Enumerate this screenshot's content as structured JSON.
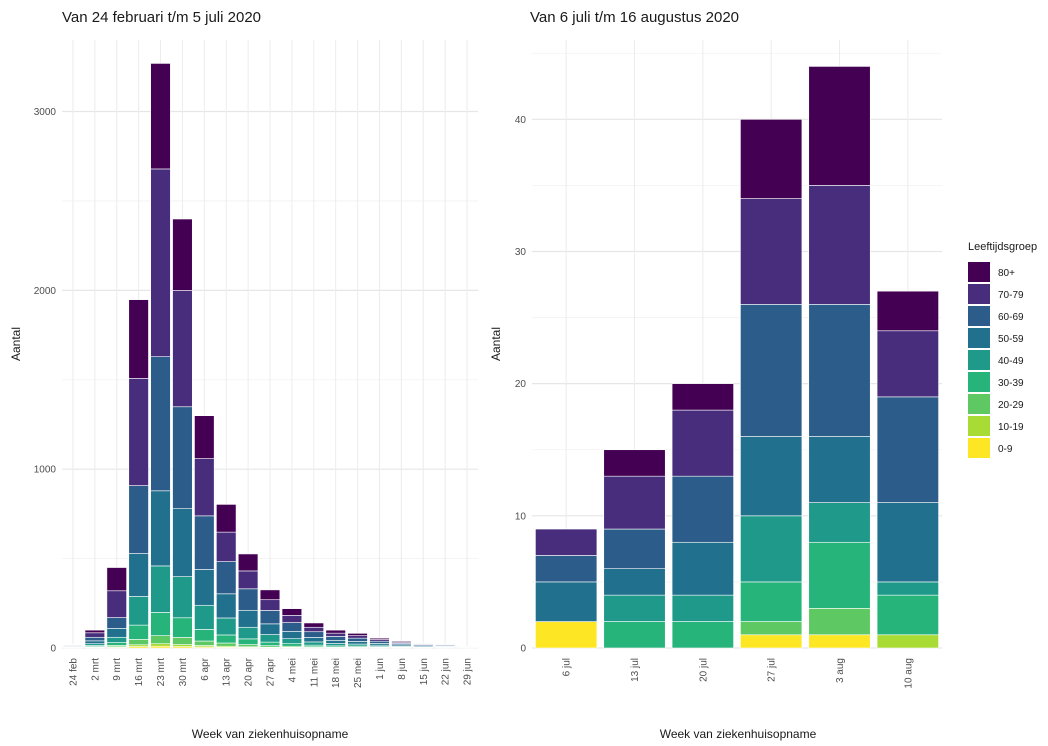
{
  "chart_data": [
    {
      "type": "bar",
      "stacked": true,
      "title": "Van 24 februari t/m 5 juli 2020",
      "xlabel": "Week van ziekenhuisopname",
      "ylabel": "Aantal",
      "ylim": [
        0,
        3400
      ],
      "yticks": [
        0,
        1000,
        2000,
        3000
      ],
      "grid": true,
      "categories": [
        "24 feb",
        "2 mrt",
        "9 mrt",
        "16 mrt",
        "23 mrt",
        "30 mrt",
        "6 apr",
        "13 apr",
        "20 apr",
        "27 apr",
        "4 mei",
        "11 mei",
        "18 mei",
        "25 mei",
        "1 jun",
        "8 jun",
        "15 jun",
        "22 jun",
        "29 jun"
      ],
      "series": [
        {
          "name": "0-9",
          "values": [
            1,
            2,
            3,
            8,
            10,
            8,
            6,
            4,
            3,
            2,
            2,
            1,
            1,
            1,
            1,
            1,
            0,
            0,
            0
          ]
        },
        {
          "name": "10-19",
          "values": [
            1,
            2,
            4,
            10,
            14,
            11,
            8,
            6,
            4,
            3,
            2,
            2,
            1,
            1,
            1,
            1,
            1,
            1,
            0
          ]
        },
        {
          "name": "20-29",
          "values": [
            2,
            4,
            8,
            30,
            45,
            40,
            25,
            18,
            12,
            8,
            6,
            4,
            3,
            3,
            2,
            1,
            1,
            1,
            1
          ]
        },
        {
          "name": "30-39",
          "values": [
            2,
            6,
            15,
            80,
            130,
            110,
            65,
            45,
            32,
            20,
            14,
            9,
            7,
            6,
            4,
            3,
            2,
            2,
            1
          ]
        },
        {
          "name": "40-49",
          "values": [
            3,
            10,
            30,
            160,
            260,
            230,
            135,
            95,
            65,
            42,
            28,
            18,
            13,
            11,
            8,
            5,
            4,
            3,
            2
          ]
        },
        {
          "name": "50-59",
          "values": [
            4,
            16,
            50,
            240,
            420,
            380,
            200,
            135,
            95,
            60,
            40,
            25,
            18,
            15,
            10,
            7,
            5,
            4,
            2
          ]
        },
        {
          "name": "60-69",
          "values": [
            4,
            20,
            60,
            380,
            750,
            570,
            300,
            180,
            120,
            75,
            50,
            32,
            22,
            18,
            12,
            8,
            6,
            5,
            2
          ]
        },
        {
          "name": "70-79",
          "values": [
            3,
            25,
            150,
            600,
            1050,
            650,
            320,
            165,
            100,
            60,
            40,
            25,
            18,
            14,
            9,
            6,
            4,
            3,
            1
          ]
        },
        {
          "name": "80+",
          "values": [
            2,
            15,
            130,
            440,
            590,
            400,
            240,
            155,
            95,
            55,
            38,
            24,
            17,
            13,
            8,
            5,
            3,
            3,
            1
          ]
        }
      ]
    },
    {
      "type": "bar",
      "stacked": true,
      "title": "Van 6 juli t/m 16 augustus 2020",
      "xlabel": "Week van ziekenhuisopname",
      "ylabel": "Aantal",
      "ylim": [
        0,
        46
      ],
      "yticks": [
        0,
        10,
        20,
        30,
        40
      ],
      "grid": true,
      "categories": [
        "6 jul",
        "13 jul",
        "20 jul",
        "27 jul",
        "3 aug",
        "10 aug"
      ],
      "series": [
        {
          "name": "0-9",
          "values": [
            2,
            0,
            0,
            1,
            1,
            0
          ]
        },
        {
          "name": "10-19",
          "values": [
            0,
            0,
            0,
            0,
            0,
            1
          ]
        },
        {
          "name": "20-29",
          "values": [
            0,
            0,
            0,
            1,
            2,
            0
          ]
        },
        {
          "name": "30-39",
          "values": [
            0,
            2,
            2,
            3,
            5,
            3
          ]
        },
        {
          "name": "40-49",
          "values": [
            0,
            2,
            2,
            5,
            3,
            1
          ]
        },
        {
          "name": "50-59",
          "values": [
            3,
            2,
            4,
            6,
            5,
            6
          ]
        },
        {
          "name": "60-69",
          "values": [
            2,
            3,
            5,
            10,
            10,
            8
          ]
        },
        {
          "name": "70-79",
          "values": [
            2,
            4,
            5,
            8,
            9,
            5
          ]
        },
        {
          "name": "80+",
          "values": [
            0,
            2,
            2,
            6,
            9,
            3
          ]
        }
      ]
    }
  ],
  "legend": {
    "title": "Leeftijdsgroep",
    "placement": "right",
    "items": [
      {
        "label": "80+",
        "color": "#440154"
      },
      {
        "label": "70-79",
        "color": "#472d7b"
      },
      {
        "label": "60-69",
        "color": "#2c5c8a"
      },
      {
        "label": "50-59",
        "color": "#21708e"
      },
      {
        "label": "40-49",
        "color": "#1f9a8a"
      },
      {
        "label": "30-39",
        "color": "#27b47b"
      },
      {
        "label": "20-29",
        "color": "#5ec962"
      },
      {
        "label": "10-19",
        "color": "#a8db34"
      },
      {
        "label": "0-9",
        "color": "#fde725"
      }
    ]
  }
}
